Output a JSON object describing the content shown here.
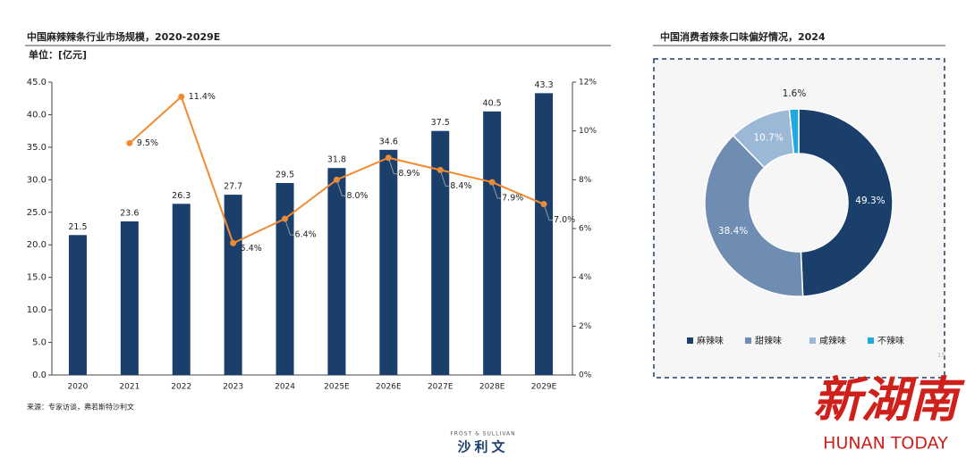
{
  "chart_data": [
    {
      "type": "bar-line",
      "title": "中国麻辣辣条行业市场规模，2020-2029E",
      "unit": "单位：[亿元]",
      "categories": [
        "2020",
        "2021",
        "2022",
        "2023",
        "2024",
        "2025E",
        "2026E",
        "2027E",
        "2028E",
        "2029E"
      ],
      "series": [
        {
          "type": "bar",
          "color": "#1b3f6b",
          "values": [
            21.5,
            23.6,
            26.3,
            27.7,
            29.5,
            31.8,
            34.6,
            37.5,
            40.5,
            43.3
          ]
        },
        {
          "type": "line",
          "axis": "y2",
          "color": "#f28a30",
          "values": [
            null,
            9.5,
            11.4,
            5.4,
            6.4,
            8.0,
            8.9,
            8.4,
            7.9,
            7.0
          ],
          "value_labels": [
            null,
            "9.5%",
            "11.4%",
            "5.4%",
            "6.4%",
            "8.0%",
            "8.9%",
            "8.4%",
            "7.9%",
            "7.0%"
          ]
        }
      ],
      "ylim": [
        0,
        45
      ],
      "yticks": [
        {
          "value": 0,
          "label": "0.0"
        },
        {
          "value": 5,
          "label": "5.0"
        },
        {
          "value": 10,
          "label": "10.0"
        },
        {
          "value": 15,
          "label": "15.0"
        },
        {
          "value": 20,
          "label": "20.0"
        },
        {
          "value": 25,
          "label": "25.0"
        },
        {
          "value": 30,
          "label": "30.0"
        },
        {
          "value": 35,
          "label": "35.0"
        },
        {
          "value": 40,
          "label": "40.0"
        },
        {
          "value": 45,
          "label": "45.0"
        }
      ],
      "y2lim": [
        0,
        12
      ],
      "y2ticks": [
        {
          "value": 0,
          "label": "0%"
        },
        {
          "value": 2,
          "label": "2%"
        },
        {
          "value": 4,
          "label": "4%"
        },
        {
          "value": 6,
          "label": "6%"
        },
        {
          "value": 8,
          "label": "8%"
        },
        {
          "value": 10,
          "label": "10%"
        },
        {
          "value": 12,
          "label": "12%"
        }
      ],
      "source": "来源：专家访谈，弗若斯特沙利文"
    },
    {
      "type": "donut",
      "title": "中国消费者辣条口味偏好情况，2024",
      "categories": [
        "麻辣味",
        "甜辣味",
        "咸辣味",
        "不辣味"
      ],
      "values": [
        49.3,
        38.4,
        10.7,
        1.6
      ],
      "value_labels": [
        "49.3%",
        "38.4%",
        "10.7%",
        "1.6%"
      ],
      "colors": [
        "#1b3f6b",
        "#6f8db3",
        "#9bb8d6",
        "#1fa9df"
      ],
      "page_number": "15"
    }
  ],
  "logo_top": "FROST & SULLIVAN",
  "logo": "沙利文",
  "watermark": "新湖南",
  "watermark_en": "HUNAN TODAY"
}
